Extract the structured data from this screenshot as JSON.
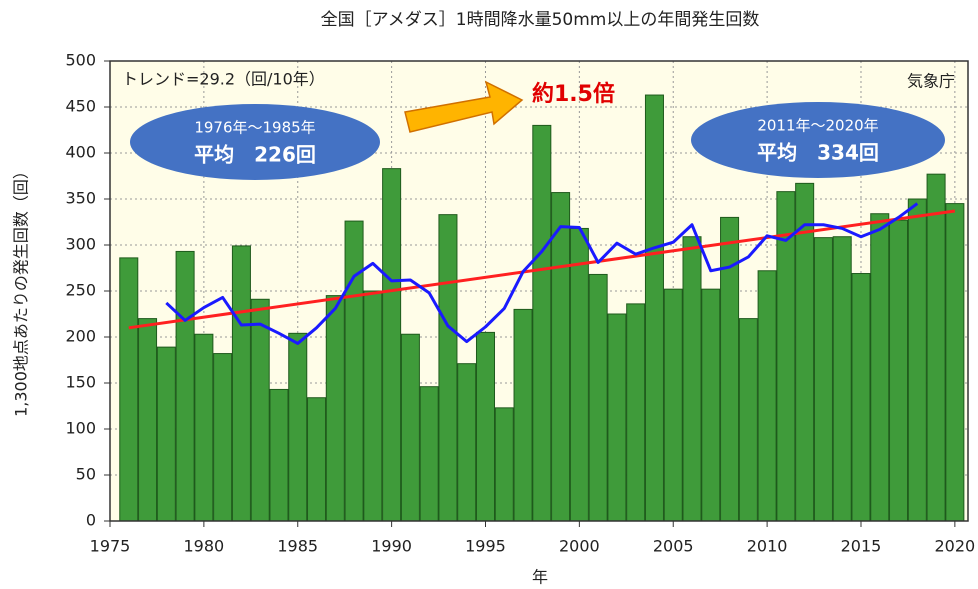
{
  "chart_data": {
    "type": "bar",
    "title": "全国［アメダス］1時間降水量50mm以上の年間発生回数",
    "x_label": "年",
    "y_label": "1,300地点あたりの発生回数（回）",
    "x": [
      1976,
      1977,
      1978,
      1979,
      1980,
      1981,
      1982,
      1983,
      1984,
      1985,
      1986,
      1987,
      1988,
      1989,
      1990,
      1991,
      1992,
      1993,
      1994,
      1995,
      1996,
      1997,
      1998,
      1999,
      2000,
      2001,
      2002,
      2003,
      2004,
      2005,
      2006,
      2007,
      2008,
      2009,
      2010,
      2011,
      2012,
      2013,
      2014,
      2015,
      2016,
      2017,
      2018,
      2019,
      2020
    ],
    "series": [
      {
        "color": "#3f9b3a",
        "values": [
          286,
          220,
          189,
          293,
          203,
          182,
          299,
          241,
          143,
          204,
          134,
          245,
          326,
          250,
          383,
          203,
          146,
          333,
          171,
          205,
          123,
          230,
          430,
          357,
          318,
          268,
          225,
          236,
          463,
          252,
          309,
          252,
          330,
          220,
          272,
          358,
          367,
          308,
          309,
          269,
          334,
          327,
          350,
          377,
          345
        ]
      }
    ],
    "moving_average": {
      "color": "#1a1aff",
      "x": [
        1978,
        1979,
        1980,
        1981,
        1982,
        1983,
        1984,
        1985,
        1986,
        1987,
        1988,
        1989,
        1990,
        1991,
        1992,
        1993,
        1994,
        1995,
        1996,
        1997,
        1998,
        1999,
        2000,
        2001,
        2002,
        2003,
        2004,
        2005,
        2006,
        2007,
        2008,
        2009,
        2010,
        2011,
        2012,
        2013,
        2014,
        2015,
        2016,
        2017,
        2018
      ],
      "values": [
        237,
        218,
        232,
        243,
        213,
        214,
        204,
        193,
        210,
        231,
        266,
        280,
        261,
        262,
        248,
        212,
        195,
        211,
        231,
        271,
        293,
        320,
        319,
        281,
        302,
        290,
        297,
        303,
        322,
        272,
        276,
        287,
        310,
        305,
        322,
        322,
        318,
        309,
        317,
        330,
        345
      ]
    },
    "trend": {
      "color": "#ff2020",
      "x": [
        1976,
        2020
      ],
      "values": [
        210,
        337
      ]
    },
    "xlim": [
      1975,
      2020.7
    ],
    "xticks": [
      1975,
      1980,
      1985,
      1990,
      1995,
      2000,
      2005,
      2010,
      2015,
      2020
    ],
    "ylim": [
      0,
      500
    ],
    "yticks": [
      0,
      50,
      100,
      150,
      200,
      250,
      300,
      350,
      400,
      450,
      500
    ],
    "grid": true,
    "annotations": {
      "trend_text": "トレンド=29.2（回/10年）",
      "source": "気象庁",
      "ratio": "約1.5倍",
      "left_period": "1976年～1985年",
      "left_mean": "平均　226回",
      "right_period": "2011年～2020年",
      "right_mean": "平均　334回"
    }
  }
}
